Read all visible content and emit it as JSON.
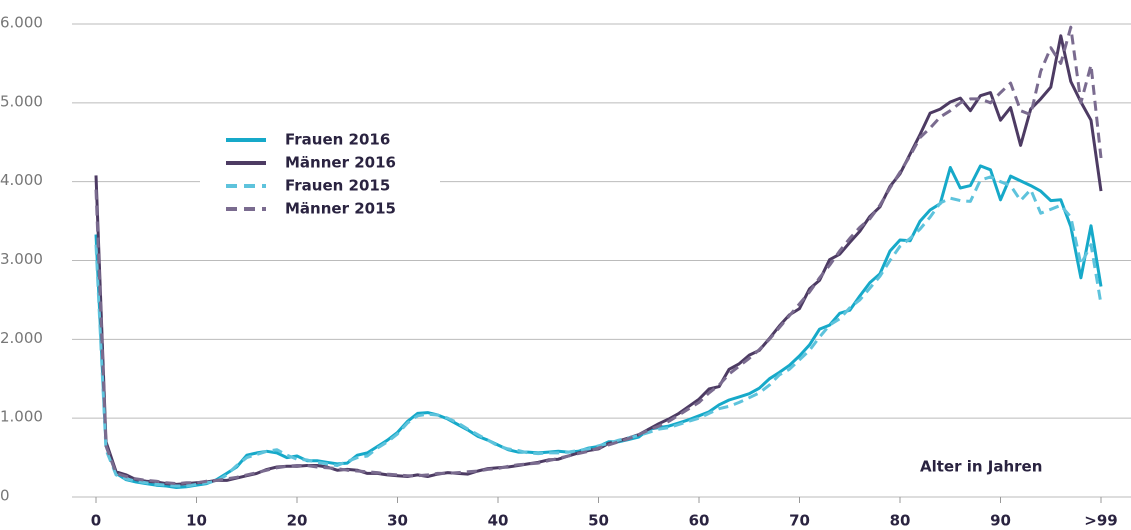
{
  "chart_data": {
    "type": "line",
    "xlabel": "Alter in Jahren",
    "x": [
      0,
      1,
      2,
      3,
      4,
      5,
      6,
      7,
      8,
      9,
      10,
      11,
      12,
      13,
      14,
      15,
      16,
      17,
      18,
      19,
      20,
      21,
      22,
      23,
      24,
      25,
      26,
      27,
      28,
      29,
      30,
      31,
      32,
      33,
      34,
      35,
      36,
      37,
      38,
      39,
      40,
      41,
      42,
      43,
      44,
      45,
      46,
      47,
      48,
      49,
      50,
      51,
      52,
      53,
      54,
      55,
      56,
      57,
      58,
      59,
      60,
      61,
      62,
      63,
      64,
      65,
      66,
      67,
      68,
      69,
      70,
      71,
      72,
      73,
      74,
      75,
      76,
      77,
      78,
      79,
      80,
      81,
      82,
      83,
      84,
      85,
      86,
      87,
      88,
      89,
      90,
      91,
      92,
      93,
      94,
      95,
      96,
      97,
      98,
      99,
      100
    ],
    "series": [
      {
        "name": "Frauen 2016",
        "color": "#16a9c9",
        "style": "solid",
        "values": [
          3330,
          650,
          300,
          220,
          190,
          170,
          150,
          140,
          120,
          130,
          150,
          170,
          220,
          300,
          380,
          530,
          560,
          580,
          560,
          500,
          520,
          460,
          460,
          440,
          420,
          430,
          530,
          560,
          640,
          720,
          820,
          960,
          1060,
          1070,
          1040,
          990,
          920,
          850,
          770,
          720,
          660,
          600,
          570,
          570,
          560,
          570,
          580,
          570,
          580,
          620,
          640,
          700,
          700,
          730,
          760,
          860,
          880,
          900,
          940,
          980,
          1030,
          1080,
          1170,
          1230,
          1270,
          1310,
          1380,
          1500,
          1580,
          1670,
          1790,
          1930,
          2130,
          2180,
          2330,
          2370,
          2550,
          2720,
          2830,
          3120,
          3260,
          3250,
          3500,
          3640,
          3720,
          4180,
          3920,
          3950,
          4200,
          4150,
          3770,
          4070,
          4010,
          3950,
          3880,
          3760,
          3770,
          3430,
          2780,
          3440,
          2670
        ]
      },
      {
        "name": "Männer 2016",
        "color": "#4d3b63",
        "style": "solid",
        "values": [
          4080,
          700,
          320,
          280,
          220,
          200,
          190,
          170,
          160,
          170,
          180,
          190,
          210,
          210,
          240,
          270,
          300,
          350,
          380,
          390,
          390,
          400,
          400,
          380,
          340,
          350,
          340,
          300,
          300,
          280,
          270,
          260,
          280,
          260,
          290,
          310,
          300,
          290,
          330,
          360,
          370,
          380,
          400,
          420,
          440,
          470,
          480,
          520,
          560,
          590,
          610,
          680,
          710,
          750,
          790,
          860,
          930,
          990,
          1060,
          1150,
          1240,
          1370,
          1400,
          1620,
          1690,
          1800,
          1860,
          2010,
          2170,
          2310,
          2390,
          2640,
          2750,
          3010,
          3080,
          3230,
          3370,
          3560,
          3680,
          3940,
          4100,
          4350,
          4600,
          4870,
          4920,
          5010,
          5060,
          4900,
          5090,
          5130,
          4780,
          4940,
          4460,
          4920,
          5050,
          5200,
          5850,
          5270,
          5010,
          4780,
          3880
        ]
      },
      {
        "name": "Frauen 2015",
        "color": "#5ec3dc",
        "style": "dashed",
        "values": [
          3200,
          600,
          280,
          230,
          200,
          180,
          160,
          150,
          140,
          140,
          160,
          180,
          200,
          280,
          400,
          500,
          540,
          580,
          600,
          530,
          480,
          470,
          440,
          420,
          400,
          450,
          500,
          520,
          620,
          700,
          800,
          940,
          1030,
          1050,
          1040,
          1000,
          940,
          860,
          790,
          720,
          650,
          610,
          590,
          560,
          550,
          560,
          560,
          570,
          590,
          610,
          650,
          680,
          720,
          750,
          780,
          820,
          860,
          880,
          920,
          960,
          1000,
          1060,
          1120,
          1150,
          1200,
          1260,
          1320,
          1420,
          1550,
          1620,
          1740,
          1860,
          2030,
          2180,
          2260,
          2400,
          2500,
          2650,
          2800,
          3000,
          3180,
          3280,
          3400,
          3550,
          3730,
          3790,
          3760,
          3750,
          4020,
          4060,
          4000,
          3950,
          3760,
          3900,
          3600,
          3650,
          3700,
          3550,
          2950,
          3200,
          2450
        ]
      },
      {
        "name": "Männer 2015",
        "color": "#7a6b8f",
        "style": "dashed",
        "values": [
          3900,
          650,
          300,
          260,
          230,
          210,
          200,
          180,
          170,
          180,
          180,
          200,
          210,
          230,
          250,
          280,
          310,
          340,
          370,
          390,
          400,
          400,
          380,
          370,
          360,
          340,
          330,
          320,
          310,
          290,
          280,
          270,
          270,
          280,
          300,
          300,
          310,
          320,
          330,
          350,
          360,
          390,
          410,
          420,
          430,
          460,
          490,
          520,
          550,
          580,
          620,
          660,
          700,
          740,
          790,
          850,
          900,
          960,
          1040,
          1120,
          1200,
          1320,
          1420,
          1560,
          1660,
          1760,
          1870,
          2000,
          2150,
          2300,
          2450,
          2600,
          2780,
          2940,
          3120,
          3280,
          3420,
          3530,
          3700,
          3920,
          4120,
          4330,
          4560,
          4680,
          4820,
          4900,
          5000,
          5050,
          5050,
          5000,
          5130,
          5250,
          4900,
          4850,
          5400,
          5700,
          5500,
          5960,
          5000,
          5480,
          4300
        ]
      }
    ],
    "xlim": [
      0,
      100
    ],
    "xticks": [
      0,
      10,
      20,
      30,
      40,
      50,
      60,
      70,
      80,
      90,
      {
        "value": 100,
        "label": ">99"
      }
    ],
    "ylim": [
      0,
      6000
    ],
    "yticks": [
      0,
      {
        "value": 1000,
        "label": "1.000"
      },
      {
        "value": 2000,
        "label": "2.000"
      },
      {
        "value": 3000,
        "label": "3.000"
      },
      {
        "value": 4000,
        "label": "4.000"
      },
      {
        "value": 5000,
        "label": "5.000"
      },
      {
        "value": 6000,
        "label": "6.000"
      }
    ],
    "grid": true
  }
}
